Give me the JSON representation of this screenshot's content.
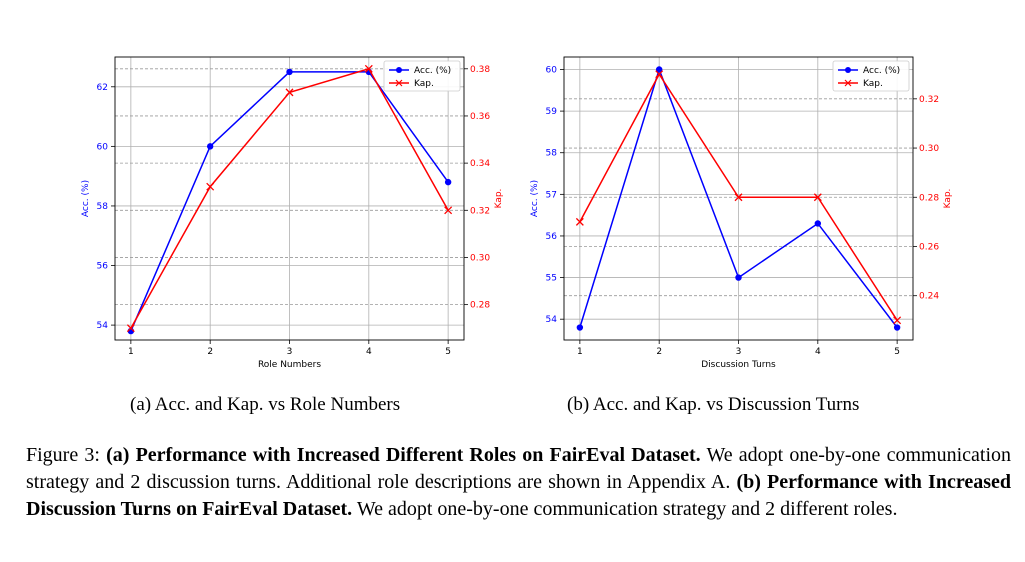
{
  "chart_data": [
    {
      "type": "line",
      "x": [
        1,
        2,
        3,
        4,
        5
      ],
      "xlabel": "Role Numbers",
      "ylabel": "Acc. (%)",
      "y2label": "Kap.",
      "ylim": [
        53.5,
        63.0
      ],
      "y2lim": [
        0.265,
        0.385
      ],
      "yticks": [
        54,
        56,
        58,
        60,
        62
      ],
      "y2ticks": [
        0.28,
        0.3,
        0.32,
        0.34,
        0.36,
        0.38
      ],
      "grid": true,
      "legend_position": "top-right",
      "series": [
        {
          "name": "Acc. (%)",
          "axis": "left",
          "color": "#0000ff",
          "marker": "circle",
          "values": [
            53.8,
            60.0,
            62.5,
            62.5,
            58.8
          ]
        },
        {
          "name": "Kap.",
          "axis": "right",
          "color": "#ff0000",
          "marker": "x",
          "values": [
            0.27,
            0.33,
            0.37,
            0.38,
            0.32
          ]
        }
      ]
    },
    {
      "type": "line",
      "x": [
        1,
        2,
        3,
        4,
        5
      ],
      "xlabel": "Discussion Turns",
      "ylabel": "Acc. (%)",
      "y2label": "Kap.",
      "ylim": [
        53.5,
        60.3
      ],
      "y2lim": [
        0.222,
        0.337
      ],
      "yticks": [
        54,
        55,
        56,
        57,
        58,
        59,
        60
      ],
      "y2ticks": [
        0.24,
        0.26,
        0.28,
        0.3,
        0.32
      ],
      "grid": true,
      "legend_position": "top-right",
      "series": [
        {
          "name": "Acc. (%)",
          "axis": "left",
          "color": "#0000ff",
          "marker": "circle",
          "values": [
            53.8,
            60.0,
            55.0,
            56.3,
            53.8
          ]
        },
        {
          "name": "Kap.",
          "axis": "right",
          "color": "#ff0000",
          "marker": "x",
          "values": [
            0.27,
            0.33,
            0.28,
            0.28,
            0.23
          ]
        }
      ]
    }
  ],
  "captions": {
    "sub_a": "(a) Acc. and Kap. vs Role Numbers",
    "sub_b": "(b) Acc. and Kap. vs Discussion Turns",
    "figure_label": "Figure 3:",
    "part_a_bold": "(a) Performance with Increased Different Roles on FairEval Dataset.",
    "part_a_text": "We adopt one-by-one communication strategy and 2 discussion turns. Additional role descriptions are shown in Appendix A.",
    "part_b_bold": "(b) Performance with Increased Discussion Turns on FairEval Dataset.",
    "part_b_text": "We adopt one-by-one communication strategy and 2 different roles."
  }
}
